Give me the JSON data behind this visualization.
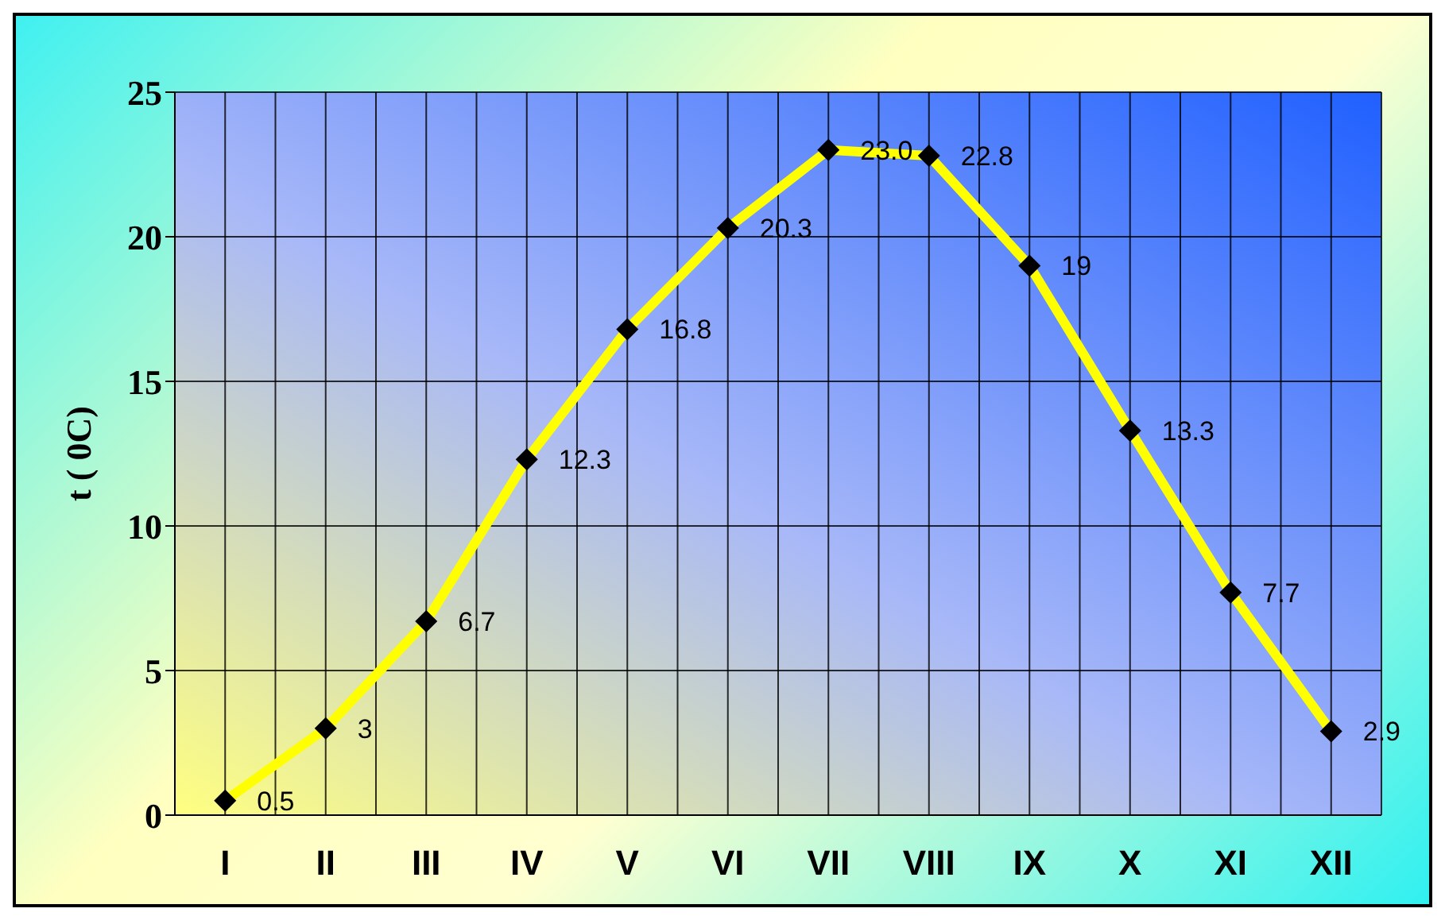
{
  "chart_data": {
    "type": "line",
    "ylabel": "t ( 0C)",
    "categories": [
      "I",
      "II",
      "III",
      "IV",
      "V",
      "VI",
      "VII",
      "VIII",
      "IX",
      "X",
      "XI",
      "XII"
    ],
    "values": [
      0.5,
      3,
      6.7,
      12.3,
      16.8,
      20.3,
      23.0,
      22.8,
      19,
      13.3,
      7.7,
      2.9
    ],
    "value_labels": [
      "0.5",
      "3",
      "6.7",
      "12.3",
      "16.8",
      "20.3",
      "23.0",
      "22.8",
      "19",
      "13.3",
      "7.7",
      "2.9"
    ],
    "color": "#ffff00",
    "ylim": [
      0,
      25
    ],
    "yticks": [
      0,
      5,
      10,
      15,
      20,
      25
    ],
    "grid": true,
    "marker": "diamond",
    "line_style": "solid"
  }
}
